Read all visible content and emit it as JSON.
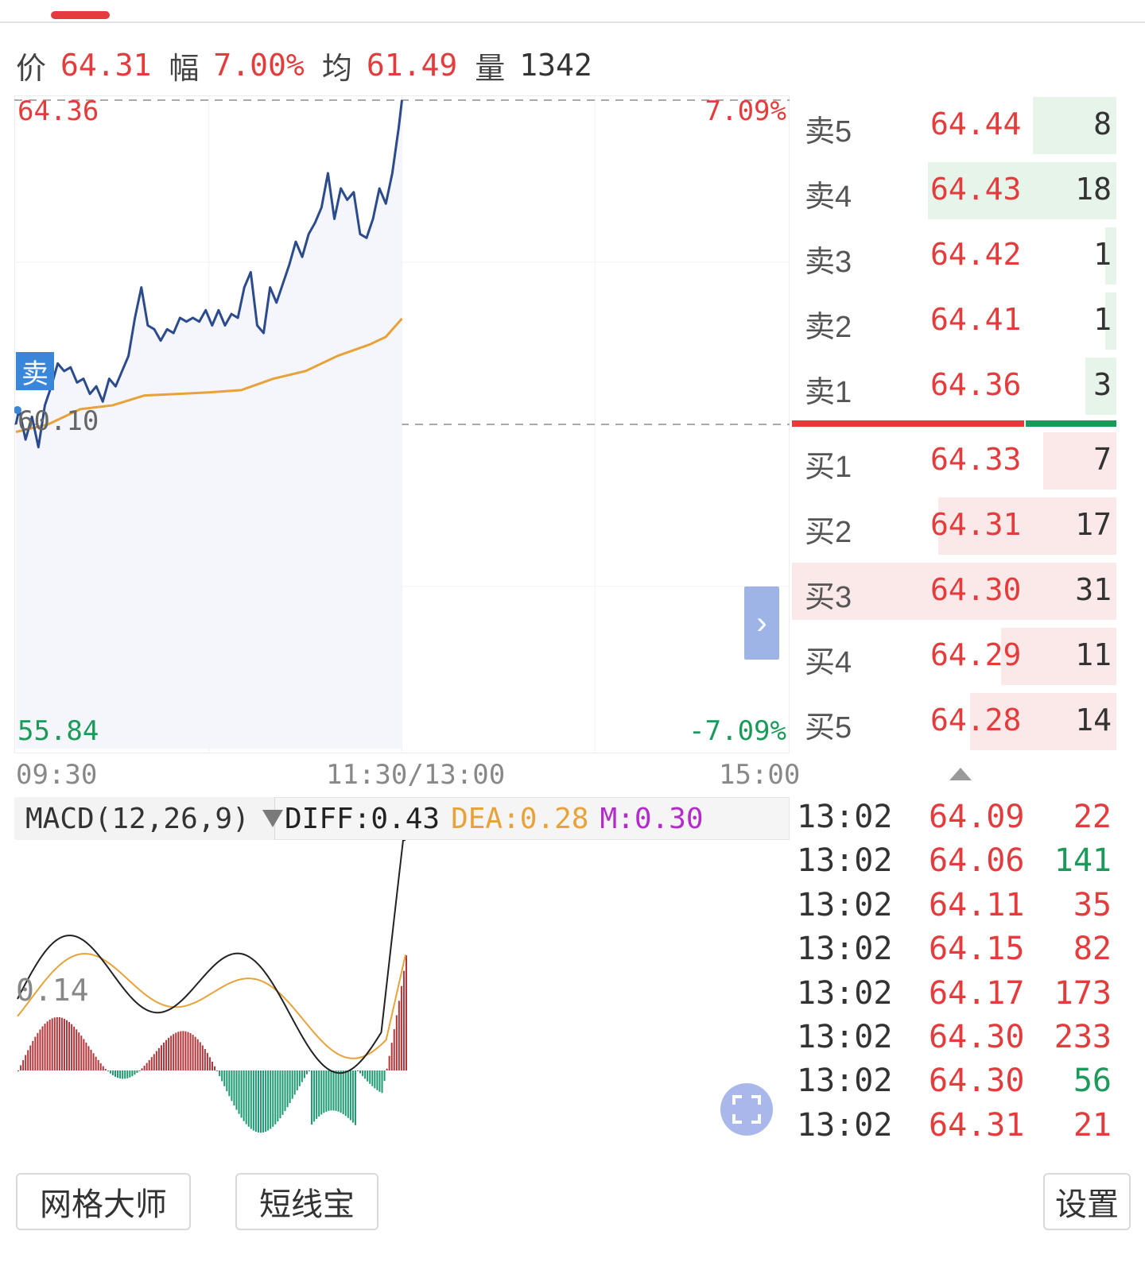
{
  "quote": {
    "price_label": "价",
    "price": "64.31",
    "change_label": "幅",
    "change": "7.00%",
    "avg_label": "均",
    "avg": "61.49",
    "volume_label": "量",
    "volume": "1342"
  },
  "chart": {
    "high_price": "64.36",
    "high_pct": "7.09%",
    "base_price": "60.10",
    "low_price": "55.84",
    "low_pct": "-7.09%",
    "sell_badge": "卖",
    "expand_icon": "chevron-right-icon",
    "time_labels": [
      "09:30",
      "11:30/13:00",
      "15:00"
    ]
  },
  "chart_data": {
    "type": "line",
    "x_unit": "minute index since 09:30",
    "y_range": [
      55.84,
      64.36
    ],
    "base": 60.1,
    "series": [
      {
        "name": "价",
        "color": "#2b4b8c",
        "x": [
          0,
          1,
          3,
          5,
          7,
          9,
          11,
          13,
          15,
          17,
          19,
          21,
          23,
          25,
          27,
          29,
          31,
          33,
          35,
          37,
          39,
          41,
          43,
          45,
          47,
          49,
          51,
          53,
          55,
          57,
          59,
          61,
          63,
          65,
          67,
          69,
          71,
          73,
          75,
          77,
          79,
          81,
          83,
          85,
          87,
          89,
          91,
          93,
          95,
          97,
          99,
          101,
          103,
          105,
          107,
          109,
          111,
          113,
          115,
          117,
          119,
          120
        ],
        "y": [
          60.1,
          60.3,
          59.9,
          60.2,
          59.8,
          60.35,
          60.6,
          60.9,
          60.8,
          60.85,
          60.65,
          60.7,
          60.5,
          60.6,
          60.4,
          60.7,
          60.6,
          60.8,
          61.0,
          61.5,
          61.9,
          61.4,
          61.35,
          61.2,
          61.35,
          61.3,
          61.5,
          61.45,
          61.5,
          61.45,
          61.6,
          61.4,
          61.6,
          61.4,
          61.55,
          61.5,
          61.9,
          62.1,
          61.4,
          61.3,
          61.9,
          61.7,
          61.95,
          62.2,
          62.5,
          62.3,
          62.6,
          62.75,
          62.95,
          63.4,
          62.8,
          63.2,
          63.05,
          63.15,
          62.6,
          62.55,
          62.8,
          63.2,
          63.0,
          63.4,
          64.0,
          64.36
        ]
      },
      {
        "name": "均",
        "color": "#e8a23a",
        "x": [
          0,
          10,
          20,
          30,
          40,
          50,
          60,
          70,
          80,
          90,
          100,
          110,
          115,
          120
        ],
        "y": [
          60.0,
          60.1,
          60.3,
          60.35,
          60.48,
          60.5,
          60.52,
          60.55,
          60.7,
          60.8,
          61.0,
          61.15,
          61.25,
          61.49
        ]
      }
    ]
  },
  "order_book": {
    "asks": [
      {
        "label": "卖5",
        "price": "64.44",
        "volume": "8"
      },
      {
        "label": "卖4",
        "price": "64.43",
        "volume": "18"
      },
      {
        "label": "卖3",
        "price": "64.42",
        "volume": "1"
      },
      {
        "label": "卖2",
        "price": "64.41",
        "volume": "1"
      },
      {
        "label": "卖1",
        "price": "64.36",
        "volume": "3"
      }
    ],
    "bids": [
      {
        "label": "买1",
        "price": "64.33",
        "volume": "7"
      },
      {
        "label": "买2",
        "price": "64.31",
        "volume": "17"
      },
      {
        "label": "买3",
        "price": "64.30",
        "volume": "31"
      },
      {
        "label": "买4",
        "price": "64.29",
        "volume": "11"
      },
      {
        "label": "买5",
        "price": "64.28",
        "volume": "14"
      }
    ],
    "collapse_icon": "triangle-up-icon"
  },
  "macd": {
    "indicator": "MACD(12,26,9)",
    "dropdown_icon": "triangle-down-icon",
    "diff_text": "DIFF:0.43",
    "dea_text": "DEA:0.28",
    "m_text": "M:0.30",
    "axis_label": "0.14",
    "colors": {
      "diff": "#222222",
      "dea": "#e8a23a",
      "m": "#b32cc9",
      "up_bar": "#b2353a",
      "down_bar": "#1b9a72"
    }
  },
  "ticks": [
    {
      "time": "13:02",
      "price": "64.09",
      "volume": "22",
      "side": "buy"
    },
    {
      "time": "13:02",
      "price": "64.06",
      "volume": "141",
      "side": "sell"
    },
    {
      "time": "13:02",
      "price": "64.11",
      "volume": "35",
      "side": "buy"
    },
    {
      "time": "13:02",
      "price": "64.15",
      "volume": "82",
      "side": "buy"
    },
    {
      "time": "13:02",
      "price": "64.17",
      "volume": "173",
      "side": "buy"
    },
    {
      "time": "13:02",
      "price": "64.30",
      "volume": "233",
      "side": "buy"
    },
    {
      "time": "13:02",
      "price": "64.30",
      "volume": "56",
      "side": "sell"
    },
    {
      "time": "13:02",
      "price": "64.31",
      "volume": "21",
      "side": "buy"
    }
  ],
  "buttons": {
    "grid_master": "网格大师",
    "short_line": "短线宝",
    "settings": "设置",
    "fullscreen_icon": "fullscreen-icon"
  },
  "colors": {
    "up": "#e43c3c",
    "down": "#1b9a5a",
    "ask_bg": "#e6f4ea",
    "bid_bg": "#fbe9e9"
  }
}
